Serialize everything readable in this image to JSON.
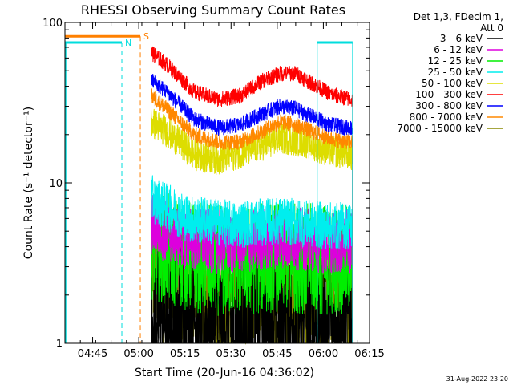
{
  "chart_data": {
    "type": "line",
    "title": "RHESSI Observing Summary Count Rates",
    "xlabel": "Start Time (20-Jun-16 04:36:02)",
    "ylabel": "Count Rate (s⁻¹ detector⁻¹)",
    "y_scale": "log",
    "ylim": [
      1,
      100
    ],
    "y_ticks": [
      {
        "value": 1,
        "label": "1"
      },
      {
        "value": 10,
        "label": "10"
      },
      {
        "value": 100,
        "label": "100"
      }
    ],
    "x_range_minutes": [
      0,
      99
    ],
    "x_ticks": [
      {
        "minute": 9,
        "label": "04:45"
      },
      {
        "minute": 24,
        "label": "05:00"
      },
      {
        "minute": 39,
        "label": "05:15"
      },
      {
        "minute": 54,
        "label": "05:30"
      },
      {
        "minute": 69,
        "label": "05:45"
      },
      {
        "minute": 84,
        "label": "06:00"
      },
      {
        "minute": 99,
        "label": "06:15"
      }
    ],
    "legend_header": [
      "Det 1,3, FDecim 1,",
      "Att 0"
    ],
    "legend_position": "right",
    "data_start_minute": 28,
    "data_end_minute": 93.5,
    "series": [
      {
        "name": "3 - 6 keV",
        "color": "#000000",
        "profile": [
          [
            28,
            1.4
          ],
          [
            40,
            1.5
          ],
          [
            55,
            1.3
          ],
          [
            70,
            1.4
          ],
          [
            85,
            1.3
          ],
          [
            93,
            1.4
          ]
        ],
        "noise": 0.45
      },
      {
        "name": "6 - 12 keV",
        "color": "#dd00dd",
        "profile": [
          [
            28,
            5.5
          ],
          [
            40,
            4.5
          ],
          [
            55,
            4.2
          ],
          [
            70,
            4.6
          ],
          [
            85,
            4.3
          ],
          [
            93,
            4.3
          ]
        ],
        "noise": 0.2
      },
      {
        "name": "12 - 25 keV",
        "color": "#00ee00",
        "profile": [
          [
            28,
            4.2
          ],
          [
            40,
            3.5
          ],
          [
            55,
            3.2
          ],
          [
            70,
            3.5
          ],
          [
            85,
            3.3
          ],
          [
            93,
            3.3
          ]
        ],
        "noise": 0.35
      },
      {
        "name": "25 - 50 keV",
        "color": "#00eeee",
        "profile": [
          [
            28,
            8
          ],
          [
            40,
            6
          ],
          [
            55,
            5.5
          ],
          [
            70,
            5.8
          ],
          [
            85,
            5.4
          ],
          [
            93,
            5.4
          ]
        ],
        "noise": 0.15
      },
      {
        "name": "50 - 100 keV",
        "color": "#dddd00",
        "profile": [
          [
            28,
            24
          ],
          [
            33,
            21
          ],
          [
            42,
            15
          ],
          [
            50,
            14
          ],
          [
            60,
            16
          ],
          [
            70,
            19
          ],
          [
            78,
            18
          ],
          [
            85,
            16
          ],
          [
            93,
            15
          ]
        ],
        "noise": 0.1
      },
      {
        "name": "100 - 300 keV",
        "color": "#ff0000",
        "profile": [
          [
            28,
            65
          ],
          [
            33,
            55
          ],
          [
            42,
            37
          ],
          [
            50,
            33
          ],
          [
            57,
            35
          ],
          [
            64,
            43
          ],
          [
            70,
            48
          ],
          [
            75,
            48
          ],
          [
            80,
            42
          ],
          [
            86,
            36
          ],
          [
            93,
            33
          ]
        ],
        "noise": 0.05
      },
      {
        "name": "300 - 800 keV",
        "color": "#0000ff",
        "profile": [
          [
            28,
            44
          ],
          [
            33,
            37
          ],
          [
            42,
            25
          ],
          [
            50,
            22
          ],
          [
            57,
            23
          ],
          [
            64,
            27
          ],
          [
            70,
            30
          ],
          [
            75,
            29
          ],
          [
            80,
            26
          ],
          [
            86,
            23
          ],
          [
            93,
            22
          ]
        ],
        "noise": 0.05
      },
      {
        "name": "800 - 7000 keV",
        "color": "#ff8800",
        "profile": [
          [
            28,
            35
          ],
          [
            33,
            29
          ],
          [
            42,
            20
          ],
          [
            50,
            18
          ],
          [
            57,
            18
          ],
          [
            64,
            21
          ],
          [
            70,
            24
          ],
          [
            75,
            23
          ],
          [
            80,
            21
          ],
          [
            86,
            19
          ],
          [
            93,
            18
          ]
        ],
        "noise": 0.05
      },
      {
        "name": "7000 - 15000 keV",
        "color": "#888800",
        "profile": [
          [
            28,
            3
          ],
          [
            40,
            2.2
          ],
          [
            55,
            2
          ],
          [
            70,
            2.2
          ],
          [
            85,
            2
          ],
          [
            93,
            2
          ]
        ],
        "noise": 0.45
      }
    ],
    "annotations": [
      {
        "label": "N",
        "color": "#00dddd",
        "bar_minutes": [
          0,
          18.5
        ],
        "bar_y": 75,
        "marker_minute": 18.5
      },
      {
        "label": "S",
        "color": "#ff8000",
        "bar_minutes": [
          0,
          24.5
        ],
        "bar_y": 82,
        "marker_minute": 24.5
      }
    ],
    "flags": [
      {
        "color": "#00dddd",
        "range_minutes": [
          82,
          93.5
        ],
        "y": 75
      }
    ]
  },
  "footer_date": "31-Aug-2022 23:20"
}
